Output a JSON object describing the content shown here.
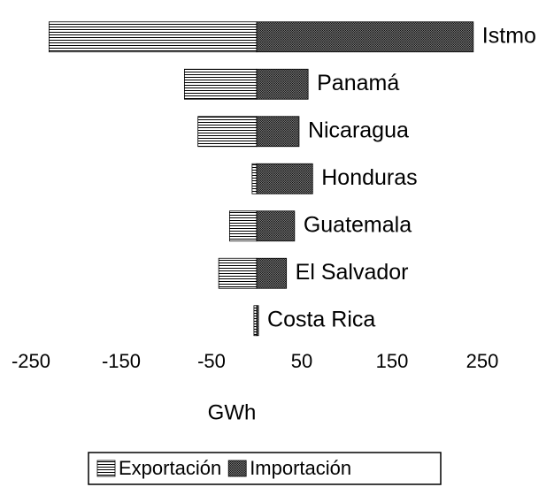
{
  "chart_data": {
    "type": "bar",
    "orientation": "horizontal",
    "stacked": false,
    "x_label": "GWh",
    "categories": [
      "Istmo",
      "Panamá",
      "Nicaragua",
      "Honduras",
      "Guatemala",
      "El Salvador",
      "Costa Rica"
    ],
    "series": [
      {
        "name": "Exportación",
        "values": [
          -230,
          -80,
          -65,
          -5,
          -30,
          -42,
          -3
        ]
      },
      {
        "name": "Importación",
        "values": [
          240,
          57,
          47,
          62,
          42,
          33,
          2
        ]
      }
    ],
    "xlim": [
      -250,
      250
    ],
    "xticks": [
      -250,
      -150,
      -50,
      50,
      150,
      250
    ],
    "legend": "bottom"
  }
}
